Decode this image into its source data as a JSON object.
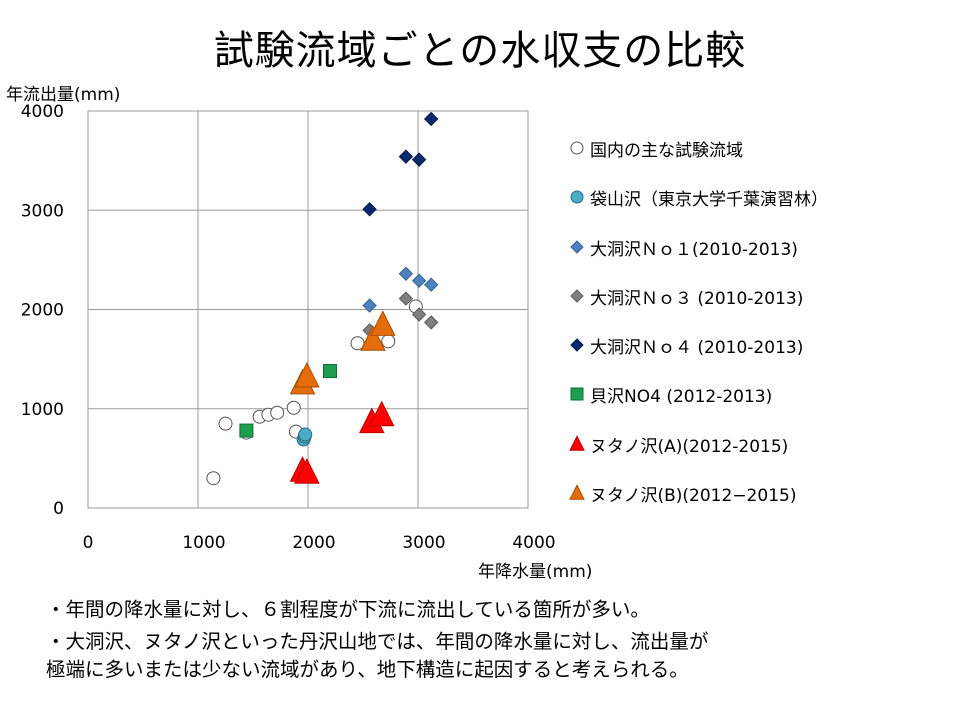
{
  "title": "試験流域ごとの水収支の比較",
  "notes": [
    "・年間の降水量に対し、６割程度が下流に流出している箇所が多い。",
    "・大洞沢、ヌタノ沢といった丹沢山地では、年間の降水量に対し、流出量が",
    "極端に多いまたは少ない流域があり、地下構造に起因すると考えられる。"
  ],
  "chart_data": {
    "type": "scatter",
    "xlabel": "年降水量(mm)",
    "ylabel": "年流出量(mm)",
    "xlim": [
      0,
      4000
    ],
    "ylim": [
      0,
      4000
    ],
    "x_ticks": [
      "0",
      "1000",
      "2000",
      "3000",
      "4000"
    ],
    "y_ticks": [
      "0",
      "1000",
      "2000",
      "3000",
      "4000"
    ],
    "grid": true,
    "legend_position": "right",
    "series": [
      {
        "name": "国内の主な試験流域",
        "marker": "circle",
        "fill": "#ffffff",
        "stroke": "#555555",
        "points": [
          [
            1140,
            300
          ],
          [
            1250,
            850
          ],
          [
            1440,
            760
          ],
          [
            1560,
            920
          ],
          [
            1640,
            940
          ],
          [
            1720,
            960
          ],
          [
            1870,
            1010
          ],
          [
            1890,
            770
          ],
          [
            2450,
            1660
          ],
          [
            2980,
            2030
          ],
          [
            2730,
            1680
          ]
        ]
      },
      {
        "name": "袋山沢（東京大学千葉演習林）",
        "marker": "circle",
        "fill": "#4bacc6",
        "stroke": "#2e6e80",
        "points": [
          [
            1960,
            690
          ],
          [
            1970,
            720
          ],
          [
            1975,
            740
          ]
        ]
      },
      {
        "name": "大洞沢Ｎｏ１(2010-2013)",
        "marker": "diamond",
        "fill": "#4f81bd",
        "stroke": "#3a6494",
        "points": [
          [
            2560,
            2040
          ],
          [
            2890,
            2360
          ],
          [
            3010,
            2290
          ],
          [
            3120,
            2250
          ]
        ]
      },
      {
        "name": "大洞沢Ｎｏ３ (2010-2013)",
        "marker": "diamond",
        "fill": "#7f7f7f",
        "stroke": "#5a5a5a",
        "points": [
          [
            2560,
            1790
          ],
          [
            2890,
            2110
          ],
          [
            3010,
            1950
          ],
          [
            3120,
            1870
          ]
        ]
      },
      {
        "name": "大洞沢Ｎｏ４ (2010-2013)",
        "marker": "diamond",
        "fill": "#0b2a6e",
        "stroke": "#061a47",
        "points": [
          [
            2560,
            3010
          ],
          [
            2890,
            3540
          ],
          [
            3010,
            3510
          ],
          [
            3120,
            3920
          ]
        ]
      },
      {
        "name": "貝沢NO4 (2012-2013)",
        "marker": "square",
        "fill": "#1e9e4f",
        "stroke": "#0f6d33",
        "points": [
          [
            1440,
            780
          ],
          [
            2200,
            1380
          ]
        ]
      },
      {
        "name": "ヌタノ沢(A)(2012-2015)",
        "marker": "triangle",
        "fill": "#ff0000",
        "stroke": "#c00000",
        "points": [
          [
            1950,
            360
          ],
          [
            1990,
            340
          ],
          [
            2580,
            850
          ],
          [
            2670,
            920
          ]
        ]
      },
      {
        "name": "ヌタノ沢(B)(2012−2015)",
        "marker": "triangle",
        "fill": "#e46c0a",
        "stroke": "#a84f07",
        "points": [
          [
            1950,
            1240
          ],
          [
            1990,
            1310
          ],
          [
            2590,
            1680
          ],
          [
            2680,
            1830
          ]
        ]
      }
    ]
  }
}
